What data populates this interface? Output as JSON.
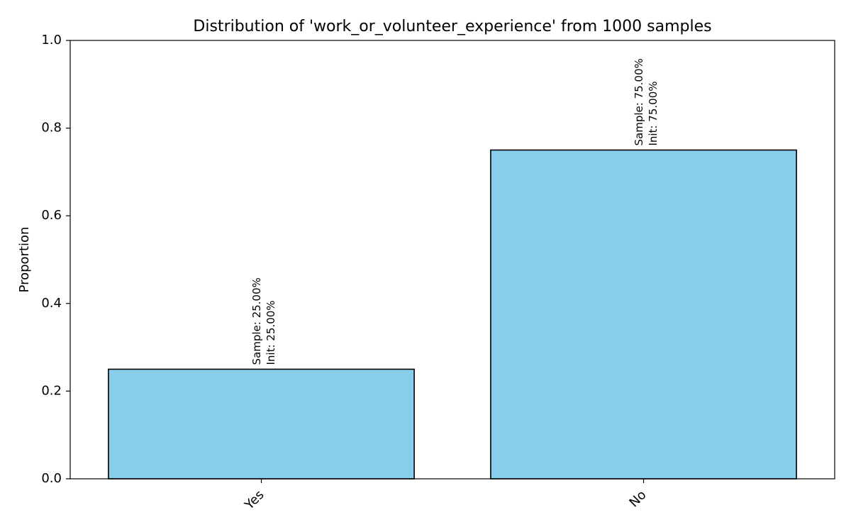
{
  "chart_data": {
    "type": "bar",
    "title": "Distribution of 'work_or_volunteer_experience' from 1000 samples",
    "xlabel": "",
    "ylabel": "Proportion",
    "categories": [
      "Yes",
      "No"
    ],
    "values": [
      0.25,
      0.75
    ],
    "data_labels": [
      [
        "Sample: 25.00%",
        "Init: 25.00%"
      ],
      [
        "Sample: 75.00%",
        "Init: 75.00%"
      ]
    ],
    "ylim": [
      0,
      1.0
    ],
    "yticks": [
      0.0,
      0.2,
      0.4,
      0.6,
      0.8,
      1.0
    ],
    "ytick_labels": [
      "0.0",
      "0.2",
      "0.4",
      "0.6",
      "0.8",
      "1.0"
    ],
    "grid": false,
    "legend": "none",
    "bar_color": "#87CEEB",
    "edge_color": "#000000"
  }
}
